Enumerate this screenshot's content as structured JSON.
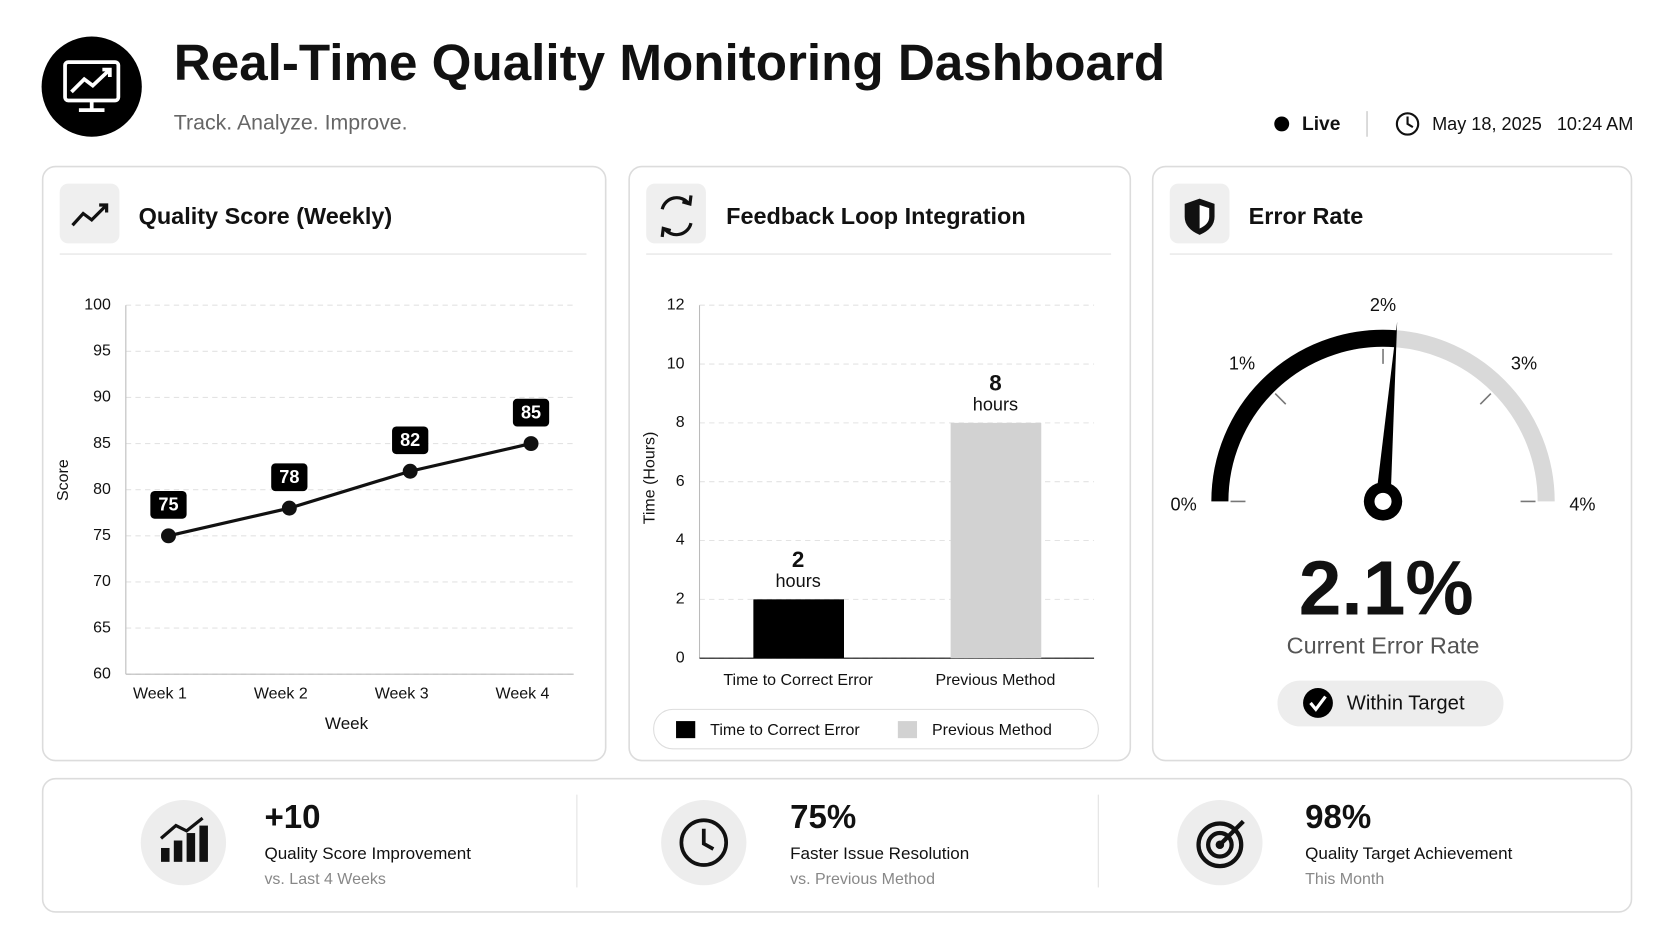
{
  "header": {
    "title": "Real-Time Quality Monitoring Dashboard",
    "subtitle": "Track. Analyze. Improve.",
    "status": "Live",
    "date": "May 18, 2025",
    "time": "10:24 AM"
  },
  "chart_data": [
    {
      "type": "line",
      "title": "Quality Score (Weekly)",
      "x_label": "Week",
      "y_label": "Score",
      "categories": [
        "Week 1",
        "Week 2",
        "Week 3",
        "Week 4"
      ],
      "values": [
        75,
        78,
        82,
        85
      ],
      "color": "#111111",
      "ylim": [
        60,
        100
      ],
      "yticks": [
        60,
        65,
        70,
        75,
        80,
        85,
        90,
        95,
        100
      ],
      "grid": true
    },
    {
      "type": "bar",
      "title": "Feedback Loop Integration",
      "y_label": "Time (Hours)",
      "categories": [
        "Time to Correct Error",
        "Previous Method"
      ],
      "values": [
        2,
        8
      ],
      "value_unit": "hours",
      "colors": [
        "#000000",
        "#d2d2d2"
      ],
      "ylim": [
        0,
        12
      ],
      "yticks": [
        0,
        2,
        4,
        6,
        8,
        10,
        12
      ],
      "grid": true,
      "legend": "bottom"
    },
    {
      "type": "gauge",
      "title": "Error Rate",
      "value": 2.1,
      "value_label": "2.1%",
      "caption": "Current Error Rate",
      "status": "Within Target",
      "range": [
        0,
        4
      ],
      "ticks": [
        {
          "value": 0,
          "label": "0%"
        },
        {
          "value": 1,
          "label": "1%"
        },
        {
          "value": 2,
          "label": "2%"
        },
        {
          "value": 3,
          "label": "3%"
        },
        {
          "value": 4,
          "label": "4%"
        }
      ],
      "color": "#000000",
      "track_color": "#d9d9d9"
    }
  ],
  "kpis": [
    {
      "value": "+10",
      "label": "Quality Score Improvement",
      "sub": "vs. Last 4 Weeks"
    },
    {
      "value": "75%",
      "label": "Faster Issue Resolution",
      "sub": "vs. Previous Method"
    },
    {
      "value": "98%",
      "label": "Quality Target Achievement",
      "sub": "This Month"
    }
  ]
}
